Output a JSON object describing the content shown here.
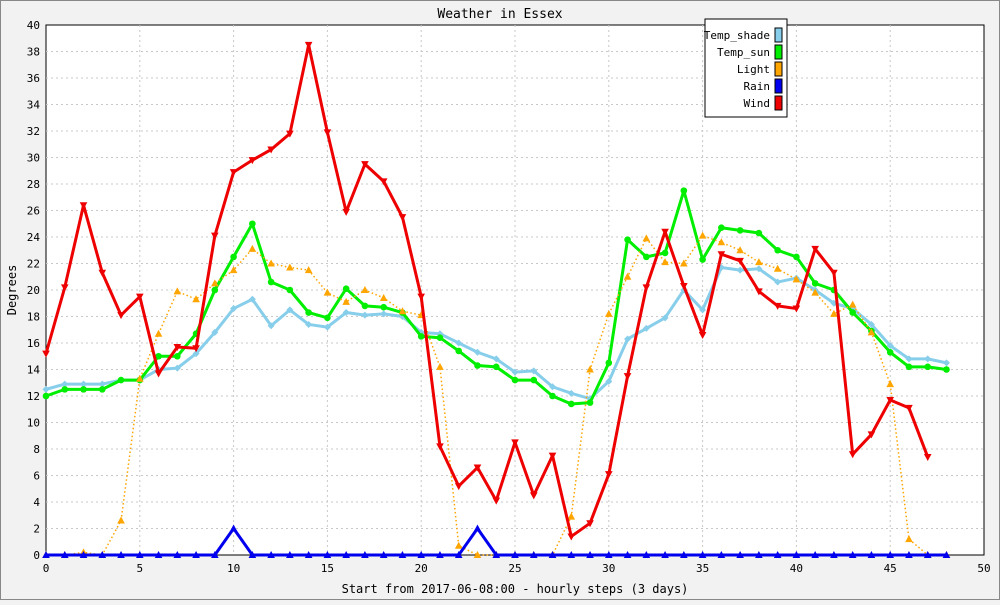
{
  "chart_data": {
    "type": "line",
    "title": "Weather in Essex",
    "xlabel": "Start from 2017-06-08:00 - hourly steps (3 days)",
    "ylabel": "Degrees",
    "xlim": [
      0,
      50
    ],
    "ylim": [
      0,
      40
    ],
    "x_ticks": [
      0,
      5,
      10,
      15,
      20,
      25,
      30,
      35,
      40,
      45,
      50
    ],
    "y_ticks": [
      0,
      2,
      4,
      6,
      8,
      10,
      12,
      14,
      16,
      18,
      20,
      22,
      24,
      26,
      28,
      30,
      32,
      34,
      36,
      38,
      40
    ],
    "grid": true,
    "legend_position": "top-right",
    "series": [
      {
        "name": "Temp_shade",
        "color": "#87ceeb",
        "marker": "diamond",
        "line_style": "solid",
        "values": [
          12.5,
          12.9,
          12.9,
          12.9,
          13.2,
          13.2,
          14.0,
          14.1,
          15.2,
          16.8,
          18.6,
          19.3,
          17.3,
          18.5,
          17.4,
          17.2,
          18.3,
          18.1,
          18.2,
          18.0,
          16.8,
          16.7,
          16.0,
          15.3,
          14.8,
          13.8,
          13.9,
          12.7,
          12.2,
          11.8,
          13.1,
          16.3,
          17.1,
          17.9,
          20.0,
          18.5,
          21.7,
          21.5,
          21.6,
          20.6,
          20.9,
          20.0,
          19.0,
          18.6,
          17.4,
          15.8,
          14.8,
          14.8,
          14.5
        ]
      },
      {
        "name": "Temp_sun",
        "color": "#00ee00",
        "marker": "circle",
        "line_style": "solid",
        "values": [
          12.0,
          12.5,
          12.5,
          12.5,
          13.2,
          13.2,
          15.0,
          15.0,
          16.7,
          20.0,
          22.5,
          25.0,
          20.6,
          20.0,
          18.3,
          17.9,
          20.1,
          18.8,
          18.7,
          18.3,
          16.5,
          16.4,
          15.4,
          14.3,
          14.2,
          13.2,
          13.2,
          12.0,
          11.4,
          11.5,
          14.5,
          23.8,
          22.5,
          22.8,
          27.5,
          22.3,
          24.7,
          24.5,
          24.3,
          23.0,
          22.5,
          20.5,
          20.0,
          18.3,
          16.9,
          15.3,
          14.2,
          14.2,
          14.0
        ]
      },
      {
        "name": "Light",
        "color": "#ffa500",
        "marker": "triangle-up",
        "line_style": "dotted",
        "values": [
          0.0,
          0.0,
          0.2,
          0.0,
          2.6,
          13.3,
          16.7,
          19.9,
          19.3,
          20.5,
          21.5,
          23.1,
          22.0,
          21.7,
          21.5,
          19.8,
          19.1,
          20.0,
          19.4,
          18.4,
          18.1,
          14.2,
          0.7,
          0.0,
          0.0,
          0.0,
          0.0,
          0.0,
          2.9,
          14.0,
          18.2,
          21.0,
          23.9,
          22.1,
          22.0,
          24.1,
          23.6,
          23.0,
          22.1,
          21.6,
          20.8,
          19.8,
          18.2,
          18.9,
          16.8,
          12.9,
          1.2,
          0.0,
          0.0
        ]
      },
      {
        "name": "Rain",
        "color": "#0000ee",
        "marker": "triangle-up",
        "line_style": "solid",
        "values": [
          0,
          0,
          0,
          0,
          0,
          0,
          0,
          0,
          0,
          0,
          2.0,
          0,
          0,
          0,
          0,
          0,
          0,
          0,
          0,
          0,
          0,
          0,
          0,
          2.0,
          0,
          0,
          0,
          0,
          0,
          0,
          0,
          0,
          0,
          0,
          0,
          0,
          0,
          0,
          0,
          0,
          0,
          0,
          0,
          0,
          0,
          0,
          0,
          0,
          0
        ]
      },
      {
        "name": "Wind",
        "color": "#ee0000",
        "marker": "triangle-down",
        "line_style": "solid",
        "values": [
          15.2,
          20.2,
          26.4,
          21.3,
          18.1,
          19.5,
          13.7,
          15.7,
          15.6,
          24.1,
          28.9,
          29.8,
          30.6,
          31.8,
          38.5,
          31.9,
          25.9,
          29.5,
          28.2,
          25.5,
          19.5,
          8.2,
          5.2,
          6.6,
          4.1,
          8.5,
          4.5,
          7.5,
          1.4,
          2.4,
          6.1,
          13.5,
          20.2,
          24.4,
          20.3,
          16.6,
          22.7,
          22.2,
          19.9,
          18.8,
          18.6,
          23.1,
          21.3,
          7.6,
          9.1,
          11.7,
          11.1,
          7.4
        ]
      }
    ]
  }
}
